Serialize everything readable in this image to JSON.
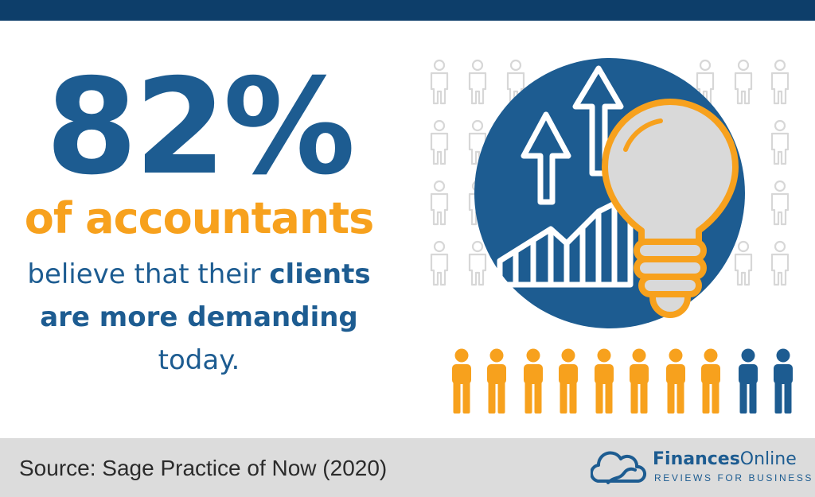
{
  "stat": {
    "value": "82%"
  },
  "headline": "of accountants",
  "body": {
    "line1_part1": "believe that their ",
    "line1_part2": "clients",
    "line2": "are more demanding",
    "line3": "today."
  },
  "people_row": {
    "total": 10,
    "highlighted": 8
  },
  "footer": {
    "source": "Source: Sage Practice of Now (2020)",
    "brand_part1": "Finances",
    "brand_part2": "Online",
    "tagline": "REVIEWS FOR BUSINESS"
  },
  "colors": {
    "blue": "#1d5c91",
    "dark_blue": "#0d3e6a",
    "orange": "#f7a11d",
    "footer_gray": "#dcdcdc",
    "silhouette_gray": "#d7d7d7",
    "bulb_gray": "#d9d9d9"
  },
  "icons": [
    "person-outline-icon",
    "growth-arrows-icon",
    "bar-chart-icon",
    "lightbulb-icon",
    "person-icon",
    "cloud-logo-icon"
  ]
}
